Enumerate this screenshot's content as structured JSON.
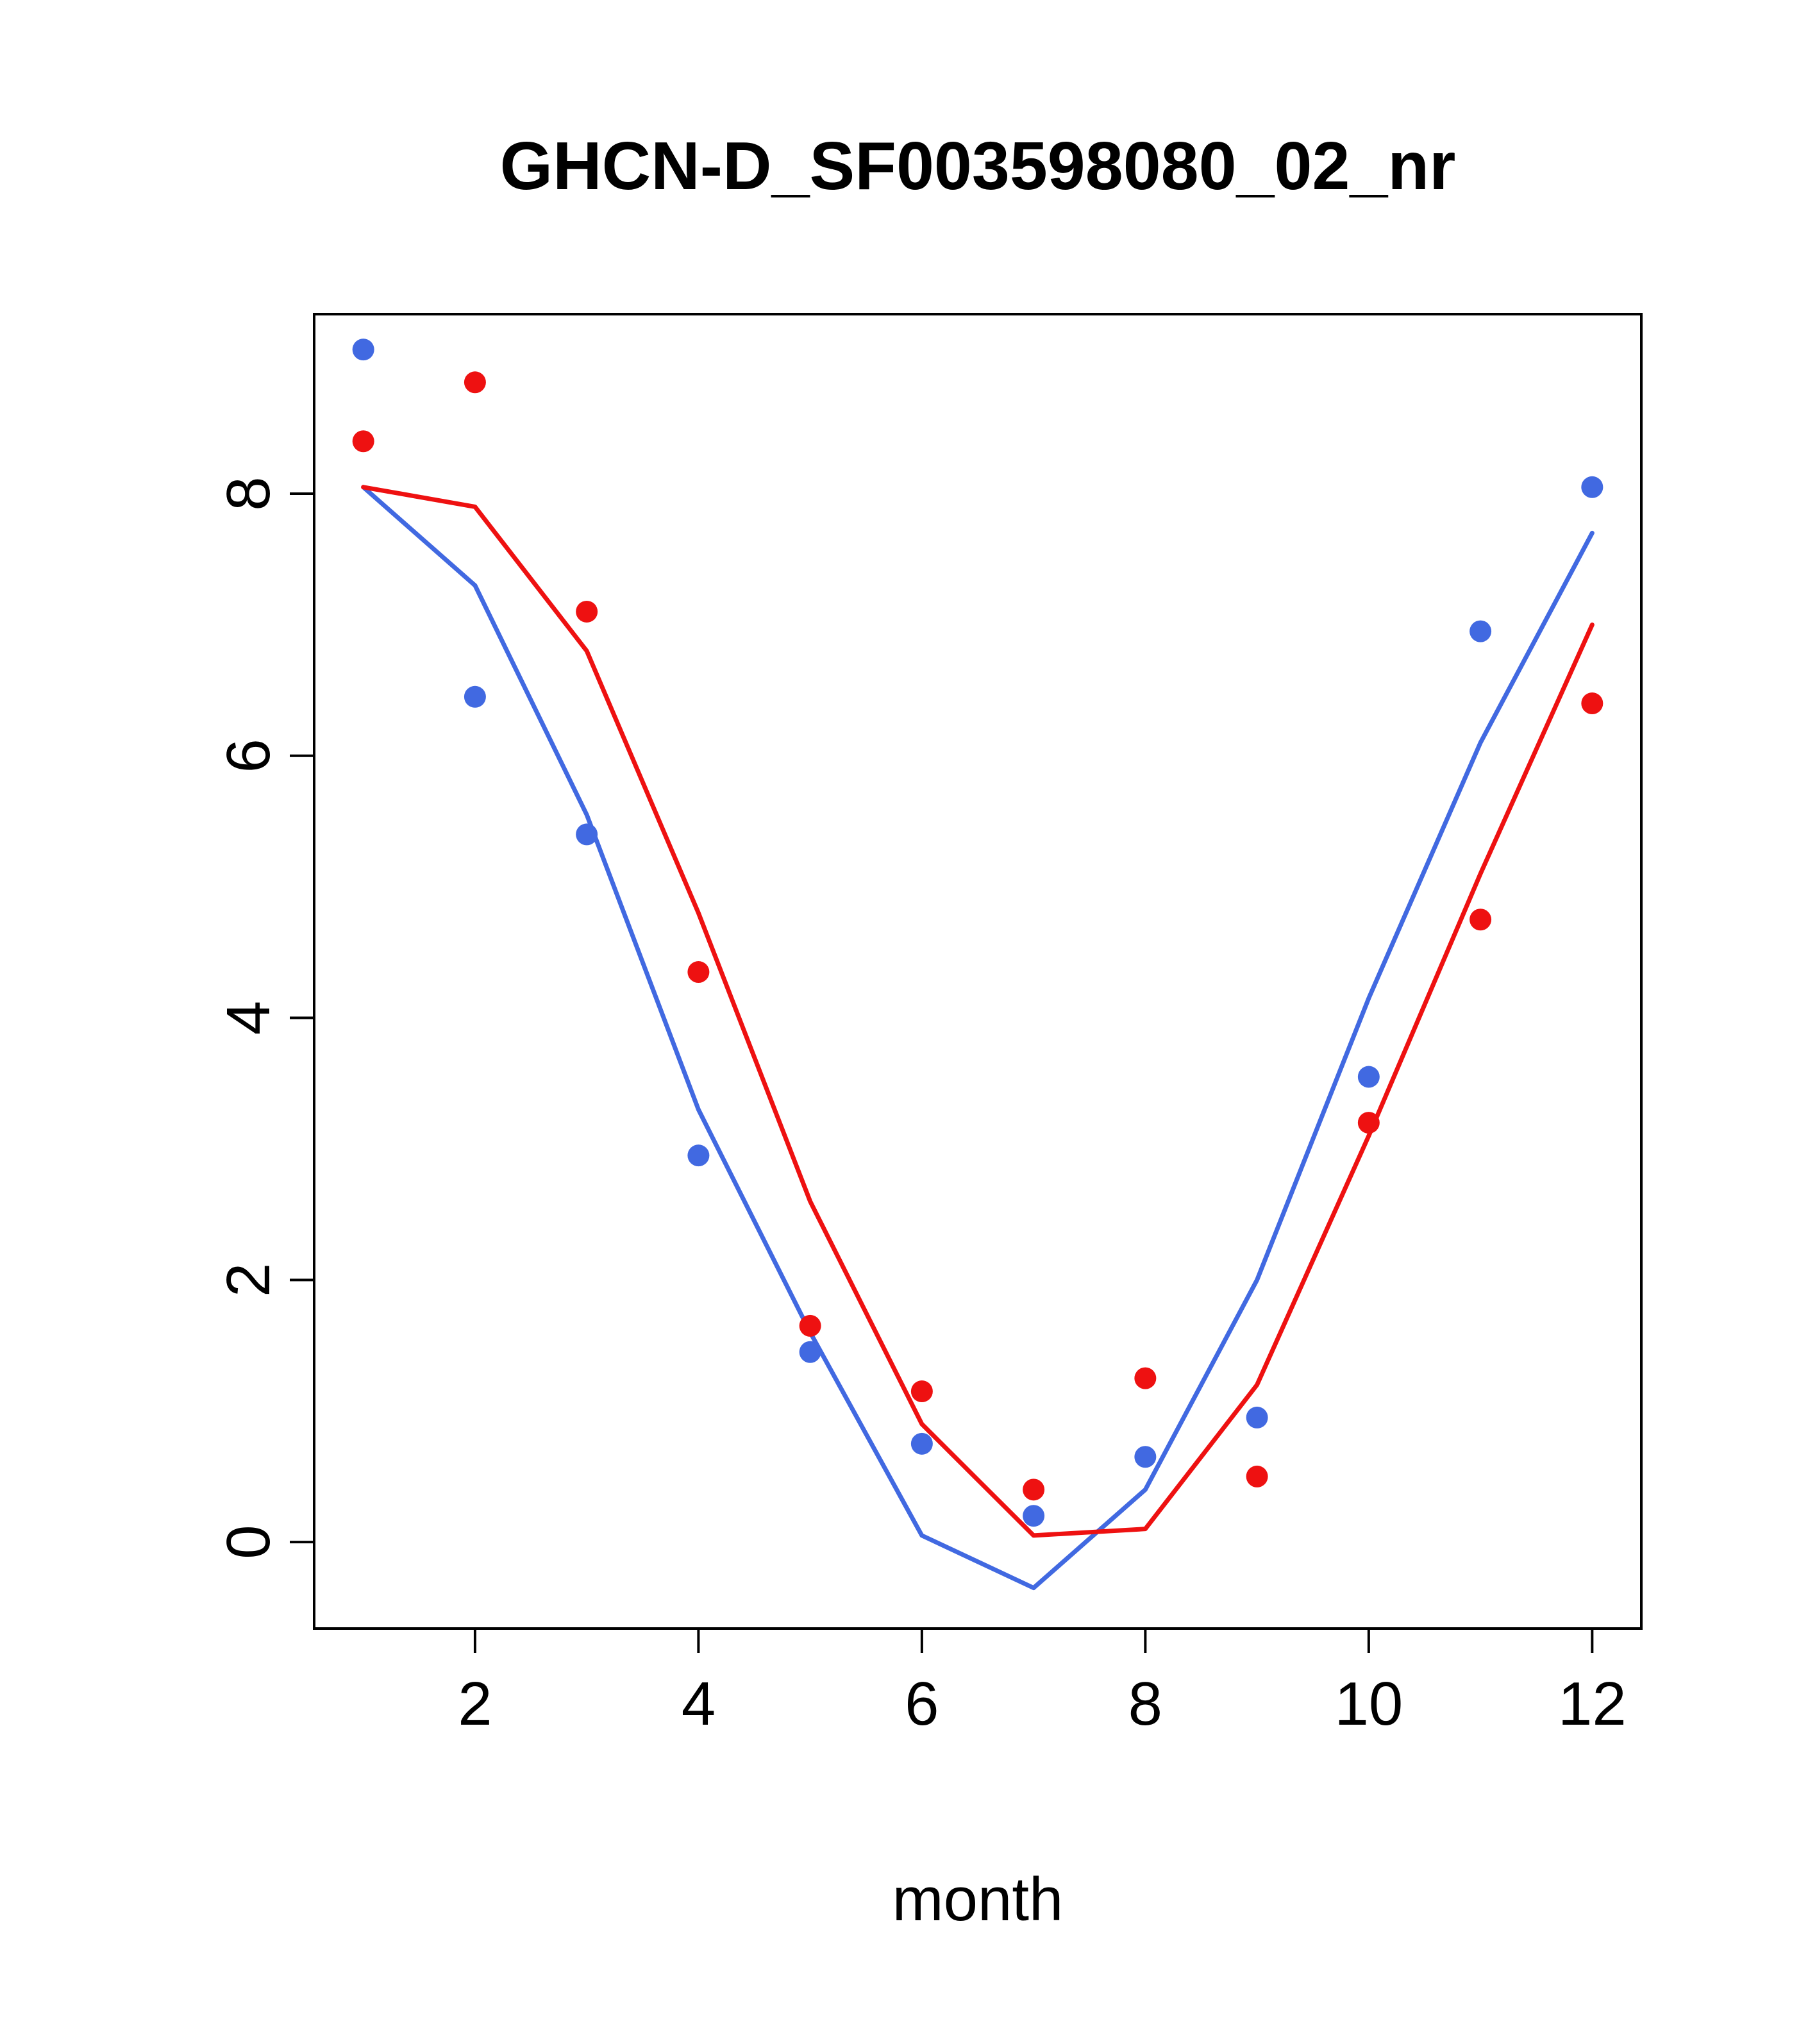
{
  "chart_data": {
    "type": "scatter",
    "title": "GHCN-D_SF003598080_02_nr",
    "xlabel": "month",
    "ylabel": "",
    "xlim": [
      0.56,
      12.44
    ],
    "ylim": [
      -0.66,
      9.37
    ],
    "xticks": [
      2,
      4,
      6,
      8,
      10,
      12
    ],
    "yticks": [
      0,
      2,
      4,
      6,
      8
    ],
    "grid": false,
    "legend": "none",
    "x": [
      1,
      2,
      3,
      4,
      5,
      6,
      7,
      8,
      9,
      10,
      11,
      12
    ],
    "colors": {
      "blue": "#4169e1",
      "red": "#ee1111",
      "axis": "#000000"
    },
    "series": [
      {
        "name": "blue-points",
        "kind": "points",
        "color_key": "blue",
        "values": [
          9.1,
          6.45,
          5.4,
          2.95,
          1.45,
          0.75,
          0.2,
          0.65,
          0.95,
          3.55,
          6.95,
          8.05
        ]
      },
      {
        "name": "red-points",
        "kind": "points",
        "color_key": "red",
        "values": [
          8.4,
          8.85,
          7.1,
          4.35,
          1.65,
          1.15,
          0.4,
          1.25,
          0.5,
          3.2,
          4.75,
          6.4
        ]
      },
      {
        "name": "blue-smooth-line",
        "kind": "line",
        "color_key": "blue",
        "values": [
          8.05,
          7.3,
          5.55,
          3.3,
          1.6,
          0.05,
          -0.35,
          0.4,
          2.0,
          4.15,
          6.1,
          7.7
        ]
      },
      {
        "name": "red-smooth-line",
        "kind": "line",
        "color_key": "red",
        "values": [
          8.05,
          7.9,
          6.8,
          4.8,
          2.6,
          0.9,
          0.05,
          0.1,
          1.2,
          3.1,
          5.1,
          7.0
        ]
      }
    ]
  }
}
